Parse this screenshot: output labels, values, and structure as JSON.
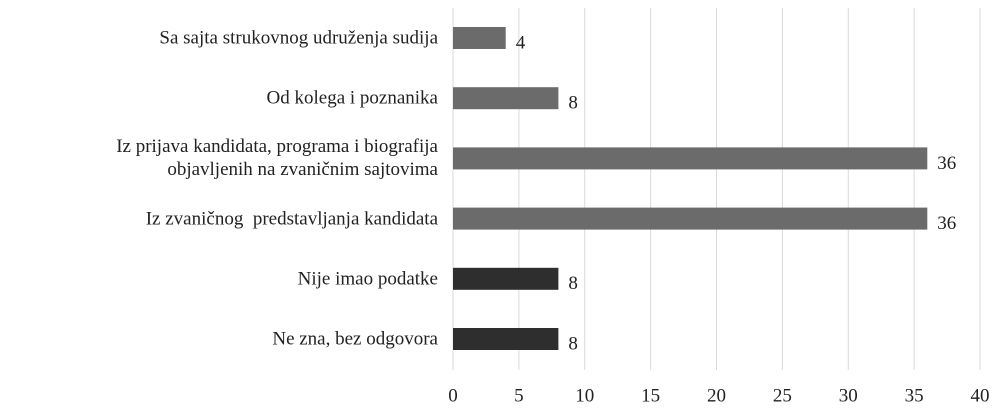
{
  "chart_data": {
    "type": "barh",
    "categories": [
      "Sa sajta strukovnog udruženja sudija",
      "Od kolega i poznanika",
      "Iz prijava kandidata, programa i biografija\nobjavljenih na zvaničnim sajtovima",
      "Iz zvaničnog  predstavljanja kandidata",
      "Nije imao podatke",
      "Ne zna, bez odgovora"
    ],
    "values": [
      4,
      8,
      36,
      36,
      8,
      8
    ],
    "colors": [
      "#6b6b6b",
      "#6b6b6b",
      "#6b6b6b",
      "#6b6b6b",
      "#2e2e2e",
      "#2e2e2e"
    ],
    "xlim": [
      0,
      40
    ],
    "xticks": [
      0,
      5,
      10,
      15,
      20,
      25,
      30,
      35,
      40
    ],
    "grid": true
  }
}
